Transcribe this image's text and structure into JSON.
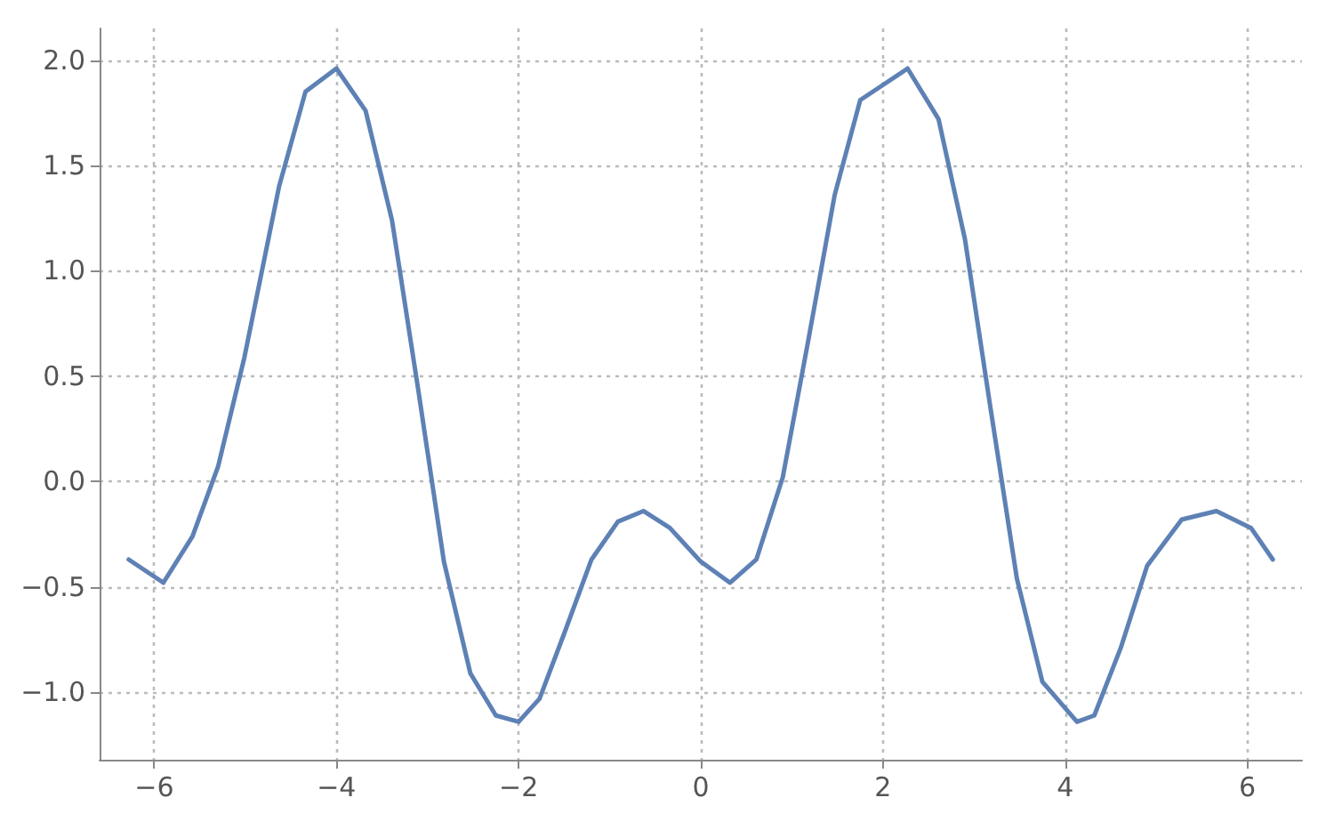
{
  "chart_data": {
    "type": "line",
    "x": [
      -6.28,
      -5.9,
      -5.58,
      -5.3,
      -5.01,
      -4.63,
      -4.34,
      -4.0,
      -3.68,
      -3.39,
      -3.1,
      -2.82,
      -2.53,
      -2.25,
      -2.0,
      -1.77,
      -1.49,
      -1.2,
      -0.91,
      -0.63,
      -0.34,
      0,
      0.32,
      0.61,
      0.9,
      1.18,
      1.47,
      1.75,
      2.27,
      2.61,
      2.9,
      3.18,
      3.47,
      3.75,
      4.13,
      4.32,
      4.61,
      4.9,
      5.28,
      5.66,
      6.04,
      6.28
    ],
    "series": [
      {
        "color": "#5e81b5",
        "values": [
          -0.37,
          -0.48,
          -0.26,
          0.07,
          0.59,
          1.4,
          1.85,
          1.96,
          1.76,
          1.24,
          0.43,
          -0.38,
          -0.91,
          -1.11,
          -1.14,
          -1.03,
          -0.71,
          -0.37,
          -0.19,
          -0.14,
          -0.22,
          -0.38,
          -0.48,
          -0.37,
          0.02,
          0.67,
          1.36,
          1.81,
          1.96,
          1.72,
          1.15,
          0.35,
          -0.46,
          -0.95,
          -1.14,
          -1.11,
          -0.79,
          -0.4,
          -0.18,
          -0.14,
          -0.22,
          -0.37
        ]
      }
    ],
    "xlim": [
      -6.6,
      6.6
    ],
    "ylim": [
      -1.32,
      2.15
    ],
    "xticks": [
      {
        "value": -6,
        "label": "−6"
      },
      {
        "value": -4,
        "label": "−4"
      },
      {
        "value": -2,
        "label": "−2"
      },
      0,
      2,
      4,
      6
    ],
    "yticks": [
      {
        "value": -1,
        "label": "−1.0"
      },
      {
        "value": -0.5,
        "label": "−0.5"
      },
      {
        "value": 0,
        "label": "0.0"
      },
      0.5,
      {
        "value": 1,
        "label": "1.0"
      },
      1.5,
      {
        "value": 2,
        "label": "2.0"
      }
    ],
    "grid": true,
    "line_style": "solid",
    "marker": "none"
  }
}
